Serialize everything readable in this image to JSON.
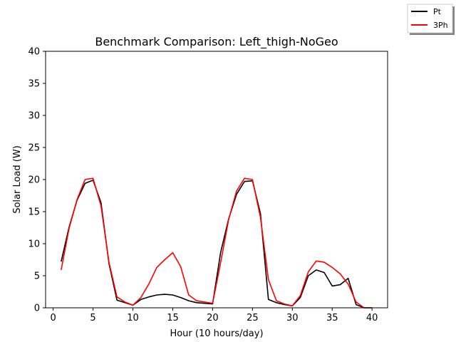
{
  "chart_data": {
    "type": "line",
    "title": "Benchmark Comparison: Left_thigh-NoGeo",
    "xlabel": "Hour (10 hours/day)",
    "ylabel": "Solar Load (W)",
    "xlim": [
      -0.95,
      41.95
    ],
    "ylim": [
      0,
      40
    ],
    "xticks": [
      0,
      5,
      10,
      15,
      20,
      25,
      30,
      35,
      40
    ],
    "yticks": [
      0,
      5,
      10,
      15,
      20,
      25,
      30,
      35,
      40
    ],
    "grid": false,
    "legend_position": "top-right (outside axes)",
    "x": [
      1,
      2,
      3,
      4,
      5,
      6,
      7,
      8,
      9,
      10,
      11,
      12,
      13,
      14,
      15,
      16,
      17,
      18,
      19,
      20,
      21,
      22,
      23,
      24,
      25,
      26,
      27,
      28,
      29,
      30,
      31,
      32,
      33,
      34,
      35,
      36,
      37,
      38,
      39,
      40
    ],
    "series": [
      {
        "name": "Pt",
        "color": "#000000",
        "values": [
          7.2,
          12.6,
          16.8,
          19.4,
          19.9,
          16.4,
          6.9,
          1.2,
          0.8,
          0.4,
          1.3,
          1.7,
          2.0,
          2.1,
          2.0,
          1.6,
          1.1,
          0.8,
          0.7,
          0.6,
          8.6,
          13.8,
          17.7,
          19.7,
          19.8,
          14.7,
          1.3,
          0.8,
          0.5,
          0.3,
          1.6,
          5.0,
          5.9,
          5.5,
          3.4,
          3.6,
          4.6,
          0.5,
          0.0,
          0.0
        ]
      },
      {
        "name": "3Ph",
        "color": "#ff0000",
        "values": [
          5.9,
          12.4,
          16.9,
          20.0,
          20.2,
          15.9,
          7.1,
          1.7,
          0.9,
          0.4,
          1.6,
          3.7,
          6.3,
          7.5,
          8.6,
          6.4,
          2.0,
          1.1,
          0.9,
          0.7,
          7.0,
          13.7,
          18.2,
          20.2,
          20.0,
          14.1,
          4.4,
          1.1,
          0.6,
          0.3,
          1.9,
          5.6,
          7.3,
          7.1,
          6.3,
          5.3,
          3.7,
          0.9,
          0.0,
          0.0
        ]
      }
    ]
  }
}
